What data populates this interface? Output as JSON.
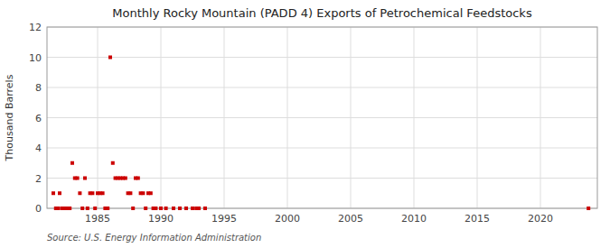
{
  "chart_data": {
    "type": "scatter",
    "title": "Monthly Rocky Mountain (PADD 4) Exports of Petrochemical Feedstocks",
    "y_label": "Thousand Barrels",
    "annotations": [
      "Source: U.S. Energy Information Administration"
    ],
    "color": "#cc0000",
    "marker": "square",
    "grid": true,
    "xlim": [
      1981.0,
      2024.5
    ],
    "ylim": [
      0,
      12
    ],
    "xticks": [
      1985,
      1990,
      1995,
      2000,
      2005,
      2010,
      2015,
      2020
    ],
    "yticks": [
      0,
      2,
      4,
      6,
      8,
      10,
      12
    ],
    "x": [
      1981.5,
      1981.7,
      1981.9,
      1982.0,
      1982.2,
      1982.4,
      1982.6,
      1982.8,
      1983.0,
      1983.2,
      1983.4,
      1983.6,
      1983.8,
      1984.0,
      1984.2,
      1984.4,
      1984.6,
      1984.8,
      1985.0,
      1985.2,
      1985.4,
      1985.6,
      1985.8,
      1986.0,
      1986.2,
      1986.4,
      1986.6,
      1986.8,
      1987.0,
      1987.2,
      1987.4,
      1987.6,
      1987.8,
      1988.0,
      1988.2,
      1988.4,
      1988.6,
      1988.8,
      1989.0,
      1989.2,
      1989.4,
      1989.6,
      1990.0,
      1990.4,
      1991.0,
      1991.5,
      1992.0,
      1992.5,
      1992.8,
      1993.0,
      1993.5,
      2023.8
    ],
    "values": [
      1,
      0,
      0,
      1,
      0,
      0,
      0,
      0,
      3,
      2,
      2,
      1,
      0,
      2,
      0,
      1,
      1,
      0,
      1,
      1,
      1,
      0,
      0,
      10,
      3,
      2,
      2,
      2,
      2,
      2,
      1,
      1,
      0,
      2,
      2,
      1,
      1,
      0,
      1,
      1,
      0,
      0,
      0,
      0,
      0,
      0,
      0,
      0,
      0,
      0,
      0,
      0
    ]
  }
}
